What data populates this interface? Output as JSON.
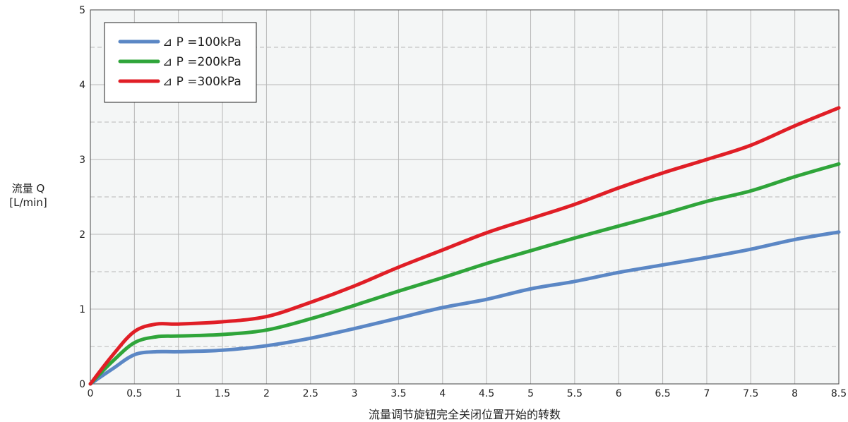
{
  "chart_data": {
    "type": "line",
    "xlabel": "流量调节旋钮完全关闭位置开始的转数",
    "ylabel_line1": "流量 Q",
    "ylabel_line2": "[L/min]",
    "xlim": [
      0,
      8.5
    ],
    "ylim": [
      0,
      5
    ],
    "x_ticks": [
      "0",
      "0.5",
      "1",
      "1.5",
      "2",
      "2.5",
      "3",
      "3.5",
      "4",
      "4.5",
      "5",
      "5.5",
      "6",
      "6.5",
      "7",
      "7.5",
      "8",
      "8.5"
    ],
    "y_ticks": [
      "0",
      "1",
      "2",
      "3",
      "4",
      "5"
    ],
    "grid": true,
    "legend_position": "top-left",
    "series": [
      {
        "name": "⊿ P =100kPa",
        "color": "#5b87c5",
        "x": [
          0,
          0.25,
          0.5,
          0.75,
          1,
          1.5,
          2,
          2.5,
          3,
          3.5,
          4,
          4.5,
          5,
          5.5,
          6,
          6.5,
          7,
          7.5,
          8,
          8.5
        ],
        "y": [
          0,
          0.2,
          0.39,
          0.43,
          0.43,
          0.45,
          0.51,
          0.61,
          0.74,
          0.88,
          1.02,
          1.13,
          1.27,
          1.37,
          1.49,
          1.59,
          1.69,
          1.8,
          1.93,
          2.03
        ]
      },
      {
        "name": "⊿ P =200kPa",
        "color": "#2fa53a",
        "x": [
          0,
          0.25,
          0.5,
          0.75,
          1,
          1.5,
          2,
          2.5,
          3,
          3.5,
          4,
          4.5,
          5,
          5.5,
          6,
          6.5,
          7,
          7.5,
          8,
          8.5
        ],
        "y": [
          0,
          0.3,
          0.55,
          0.63,
          0.64,
          0.66,
          0.72,
          0.87,
          1.05,
          1.24,
          1.42,
          1.61,
          1.78,
          1.95,
          2.11,
          2.27,
          2.44,
          2.58,
          2.77,
          2.94
        ]
      },
      {
        "name": "⊿ P =300kPa",
        "color": "#e01e26",
        "x": [
          0,
          0.25,
          0.5,
          0.75,
          1,
          1.5,
          2,
          2.5,
          3,
          3.5,
          4,
          4.5,
          5,
          5.5,
          6,
          6.5,
          7,
          7.5,
          8,
          8.5
        ],
        "y": [
          0,
          0.38,
          0.7,
          0.8,
          0.8,
          0.83,
          0.9,
          1.09,
          1.31,
          1.56,
          1.79,
          2.02,
          2.21,
          2.4,
          2.62,
          2.82,
          3.0,
          3.19,
          3.45,
          3.69
        ]
      }
    ]
  }
}
